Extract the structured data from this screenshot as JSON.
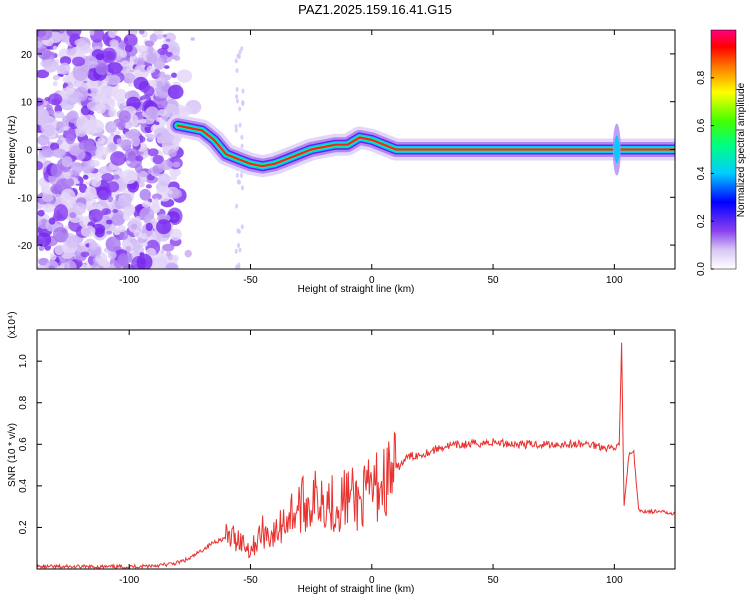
{
  "title": "PAZ1.2025.159.16.41.G15",
  "colors": {
    "snr_line": "#e8322f",
    "axis": "#000000"
  },
  "chart_data": [
    {
      "type": "heatmap",
      "xlabel": "Height of straight line (km)",
      "ylabel": "Frequency (Hz)",
      "xlim": [
        -138,
        125
      ],
      "ylim": [
        -25,
        25
      ],
      "xticks": [
        -100,
        -50,
        0,
        50,
        100
      ],
      "xtick_labels": [
        "-100",
        "-50",
        "0",
        "50",
        "100"
      ],
      "yticks": [
        -20,
        -10,
        0,
        10,
        20
      ],
      "ytick_labels": [
        "-20",
        "-10",
        "0",
        "10",
        "20"
      ],
      "ridge": {
        "x": [
          -80,
          -75,
          -70,
          -65,
          -60,
          -55,
          -50,
          -45,
          -40,
          -35,
          -30,
          -25,
          -20,
          -15,
          -10,
          -5,
          0,
          5,
          10,
          20,
          40,
          60,
          80,
          100,
          110,
          125
        ],
        "y": [
          5,
          4.5,
          4,
          2,
          -1,
          -2,
          -3,
          -3.5,
          -3,
          -2,
          -1,
          0,
          0.5,
          1,
          1,
          2.5,
          2,
          1,
          0,
          0,
          0,
          0,
          0,
          0,
          0,
          0
        ]
      },
      "colorbar": {
        "label": "Normalized spectral amplitude",
        "ticks": [
          0.0,
          0.2,
          0.4,
          0.6,
          0.8
        ],
        "tick_labels": [
          "0.0",
          "0.2",
          "0.4",
          "0.6",
          "0.8"
        ],
        "range": [
          0,
          1
        ]
      }
    },
    {
      "type": "line",
      "xlabel": "Height of straight line (km)",
      "ylabel": "SNR (10 * v/v)",
      "exponent_label": "(x10⁴)",
      "xlim": [
        -138,
        125
      ],
      "ylim": [
        0,
        1.15
      ],
      "xticks": [
        -100,
        -50,
        0,
        50,
        100
      ],
      "xtick_labels": [
        "-100",
        "-50",
        "0",
        "50",
        "100"
      ],
      "yticks": [
        0.2,
        0.4,
        0.6,
        0.8,
        1.0
      ],
      "ytick_labels": [
        "0.2",
        "0.4",
        "0.6",
        "0.8",
        "1.0"
      ],
      "series": [
        {
          "color": "#e8322f",
          "x": [
            -138,
            -120,
            -100,
            -85,
            -80,
            -75,
            -70,
            -65,
            -60,
            -55,
            -50,
            -45,
            -40,
            -35,
            -30,
            -25,
            -20,
            -15,
            -10,
            -5,
            0,
            5,
            10,
            15,
            20,
            25,
            30,
            40,
            50,
            60,
            70,
            80,
            90,
            95,
            100,
            102,
            103,
            104,
            106,
            108,
            110,
            125
          ],
          "y": [
            0.01,
            0.01,
            0.01,
            0.02,
            0.03,
            0.05,
            0.09,
            0.13,
            0.15,
            0.15,
            0.09,
            0.18,
            0.16,
            0.25,
            0.3,
            0.32,
            0.36,
            0.3,
            0.35,
            0.32,
            0.38,
            0.42,
            0.48,
            0.54,
            0.55,
            0.57,
            0.59,
            0.6,
            0.61,
            0.6,
            0.6,
            0.6,
            0.6,
            0.59,
            0.58,
            0.6,
            1.08,
            0.3,
            0.55,
            0.56,
            0.28,
            0.27
          ]
        }
      ]
    }
  ]
}
